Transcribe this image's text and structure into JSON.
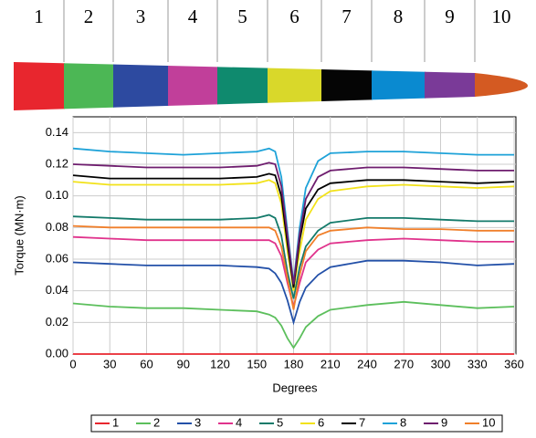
{
  "blade": {
    "sections": [
      "1",
      "2",
      "3",
      "4",
      "5",
      "6",
      "7",
      "8",
      "9",
      "10"
    ],
    "colors": [
      "#e8262e",
      "#4cb755",
      "#2d4aa0",
      "#c13f9a",
      "#0f8a6e",
      "#d9d82a",
      "#050505",
      "#0a8ad0",
      "#7a3a98",
      "#d45a22"
    ]
  },
  "chart_data": {
    "type": "line",
    "x": [
      0,
      30,
      60,
      90,
      120,
      150,
      160,
      165,
      170,
      175,
      180,
      185,
      190,
      200,
      210,
      240,
      270,
      300,
      330,
      360
    ],
    "series": [
      {
        "name": "1",
        "color": "#e8262e",
        "values": [
          0,
          0,
          0,
          0,
          0,
          0,
          0,
          0,
          0,
          0,
          0,
          0,
          0,
          0,
          0,
          0,
          0,
          0,
          0,
          0
        ]
      },
      {
        "name": "2",
        "color": "#5cbf5c",
        "values": [
          0.032,
          0.03,
          0.029,
          0.029,
          0.028,
          0.027,
          0.025,
          0.023,
          0.018,
          0.01,
          0.004,
          0.01,
          0.017,
          0.024,
          0.028,
          0.031,
          0.033,
          0.031,
          0.029,
          0.03
        ]
      },
      {
        "name": "3",
        "color": "#2350a8",
        "values": [
          0.058,
          0.057,
          0.056,
          0.056,
          0.056,
          0.055,
          0.054,
          0.051,
          0.045,
          0.034,
          0.02,
          0.033,
          0.042,
          0.05,
          0.055,
          0.059,
          0.059,
          0.058,
          0.056,
          0.057
        ]
      },
      {
        "name": "4",
        "color": "#e0338c",
        "values": [
          0.074,
          0.073,
          0.072,
          0.072,
          0.072,
          0.072,
          0.072,
          0.07,
          0.062,
          0.045,
          0.03,
          0.045,
          0.058,
          0.066,
          0.07,
          0.072,
          0.073,
          0.072,
          0.071,
          0.071
        ]
      },
      {
        "name": "5",
        "color": "#137a6a",
        "values": [
          0.087,
          0.086,
          0.085,
          0.085,
          0.085,
          0.086,
          0.088,
          0.086,
          0.075,
          0.052,
          0.035,
          0.055,
          0.068,
          0.078,
          0.083,
          0.086,
          0.086,
          0.085,
          0.084,
          0.084
        ]
      },
      {
        "name": "6",
        "color": "#f2e21a",
        "values": [
          0.109,
          0.107,
          0.107,
          0.107,
          0.107,
          0.108,
          0.11,
          0.108,
          0.095,
          0.065,
          0.04,
          0.065,
          0.085,
          0.098,
          0.103,
          0.106,
          0.107,
          0.106,
          0.105,
          0.106
        ]
      },
      {
        "name": "7",
        "color": "#000000",
        "values": [
          0.113,
          0.111,
          0.111,
          0.111,
          0.111,
          0.112,
          0.114,
          0.113,
          0.1,
          0.07,
          0.042,
          0.072,
          0.092,
          0.104,
          0.108,
          0.11,
          0.11,
          0.109,
          0.108,
          0.109
        ]
      },
      {
        "name": "8",
        "color": "#1ea2d8",
        "values": [
          0.13,
          0.128,
          0.127,
          0.126,
          0.127,
          0.128,
          0.13,
          0.128,
          0.112,
          0.078,
          0.045,
          0.08,
          0.105,
          0.122,
          0.127,
          0.128,
          0.128,
          0.127,
          0.126,
          0.126
        ]
      },
      {
        "name": "9",
        "color": "#6e1d6e",
        "values": [
          0.12,
          0.119,
          0.118,
          0.118,
          0.118,
          0.119,
          0.121,
          0.12,
          0.106,
          0.075,
          0.044,
          0.076,
          0.098,
          0.112,
          0.116,
          0.118,
          0.118,
          0.117,
          0.116,
          0.116
        ]
      },
      {
        "name": "10",
        "color": "#f07f2a",
        "values": [
          0.081,
          0.08,
          0.08,
          0.08,
          0.08,
          0.08,
          0.08,
          0.078,
          0.068,
          0.048,
          0.028,
          0.05,
          0.065,
          0.075,
          0.078,
          0.08,
          0.079,
          0.079,
          0.078,
          0.078
        ]
      }
    ],
    "xlabel": "Degrees",
    "ylabel": "Torque (MN·m)",
    "xlim": [
      0,
      360
    ],
    "ylim": [
      0,
      0.15
    ],
    "xticks": [
      0,
      30,
      60,
      90,
      120,
      150,
      180,
      210,
      240,
      270,
      300,
      330,
      360
    ],
    "yticks": [
      {
        "value": 0,
        "label": "0.00"
      },
      {
        "value": 0.02,
        "label": "0.02"
      },
      {
        "value": 0.04,
        "label": "0.04"
      },
      {
        "value": 0.06,
        "label": "0.06"
      },
      {
        "value": 0.08,
        "label": "0.08"
      },
      {
        "value": 0.1,
        "label": "0.10"
      },
      {
        "value": 0.12,
        "label": "0.12"
      },
      {
        "value": 0.14,
        "label": "0.14"
      }
    ],
    "grid": true,
    "legend": "bottom"
  }
}
